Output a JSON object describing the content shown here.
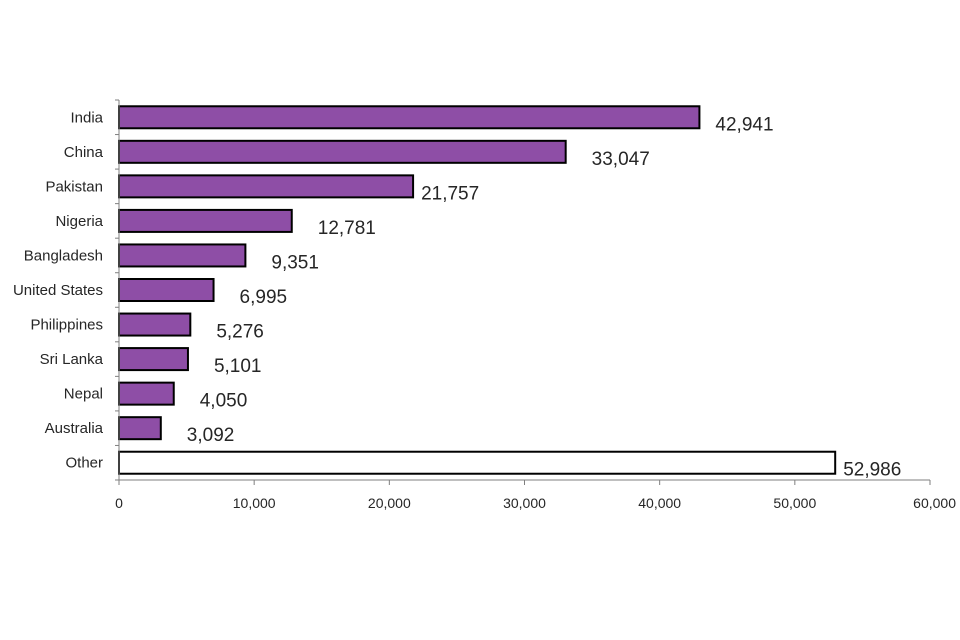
{
  "chart_data": {
    "type": "bar",
    "orientation": "horizontal",
    "categories": [
      "India",
      "China",
      "Pakistan",
      "Nigeria",
      "Bangladesh",
      "United States",
      "Philippines",
      "Sri Lanka",
      "Nepal",
      "Australia",
      "Other"
    ],
    "values": [
      42941,
      33047,
      21757,
      12781,
      9351,
      6995,
      5276,
      5101,
      4050,
      3092,
      52986
    ],
    "data_labels": [
      "42,941",
      "33,047",
      "21,757",
      "12,781",
      "9,351",
      "6,995",
      "5,276",
      "5,101",
      "4,050",
      "3,092",
      "52,986"
    ],
    "bar_colors": [
      "#8e4ea6",
      "#8e4ea6",
      "#8e4ea6",
      "#8e4ea6",
      "#8e4ea6",
      "#8e4ea6",
      "#8e4ea6",
      "#8e4ea6",
      "#8e4ea6",
      "#8e4ea6",
      "#ffffff"
    ],
    "bar_outline_color": "#000000",
    "xlim": [
      0,
      60000
    ],
    "x_ticks": [
      0,
      10000,
      20000,
      30000,
      40000,
      50000,
      60000
    ],
    "x_tick_labels": [
      "0",
      "10,000",
      "20,000",
      "30,000",
      "40,000",
      "50,000",
      "60,000"
    ],
    "grid": false,
    "legend": "none"
  }
}
